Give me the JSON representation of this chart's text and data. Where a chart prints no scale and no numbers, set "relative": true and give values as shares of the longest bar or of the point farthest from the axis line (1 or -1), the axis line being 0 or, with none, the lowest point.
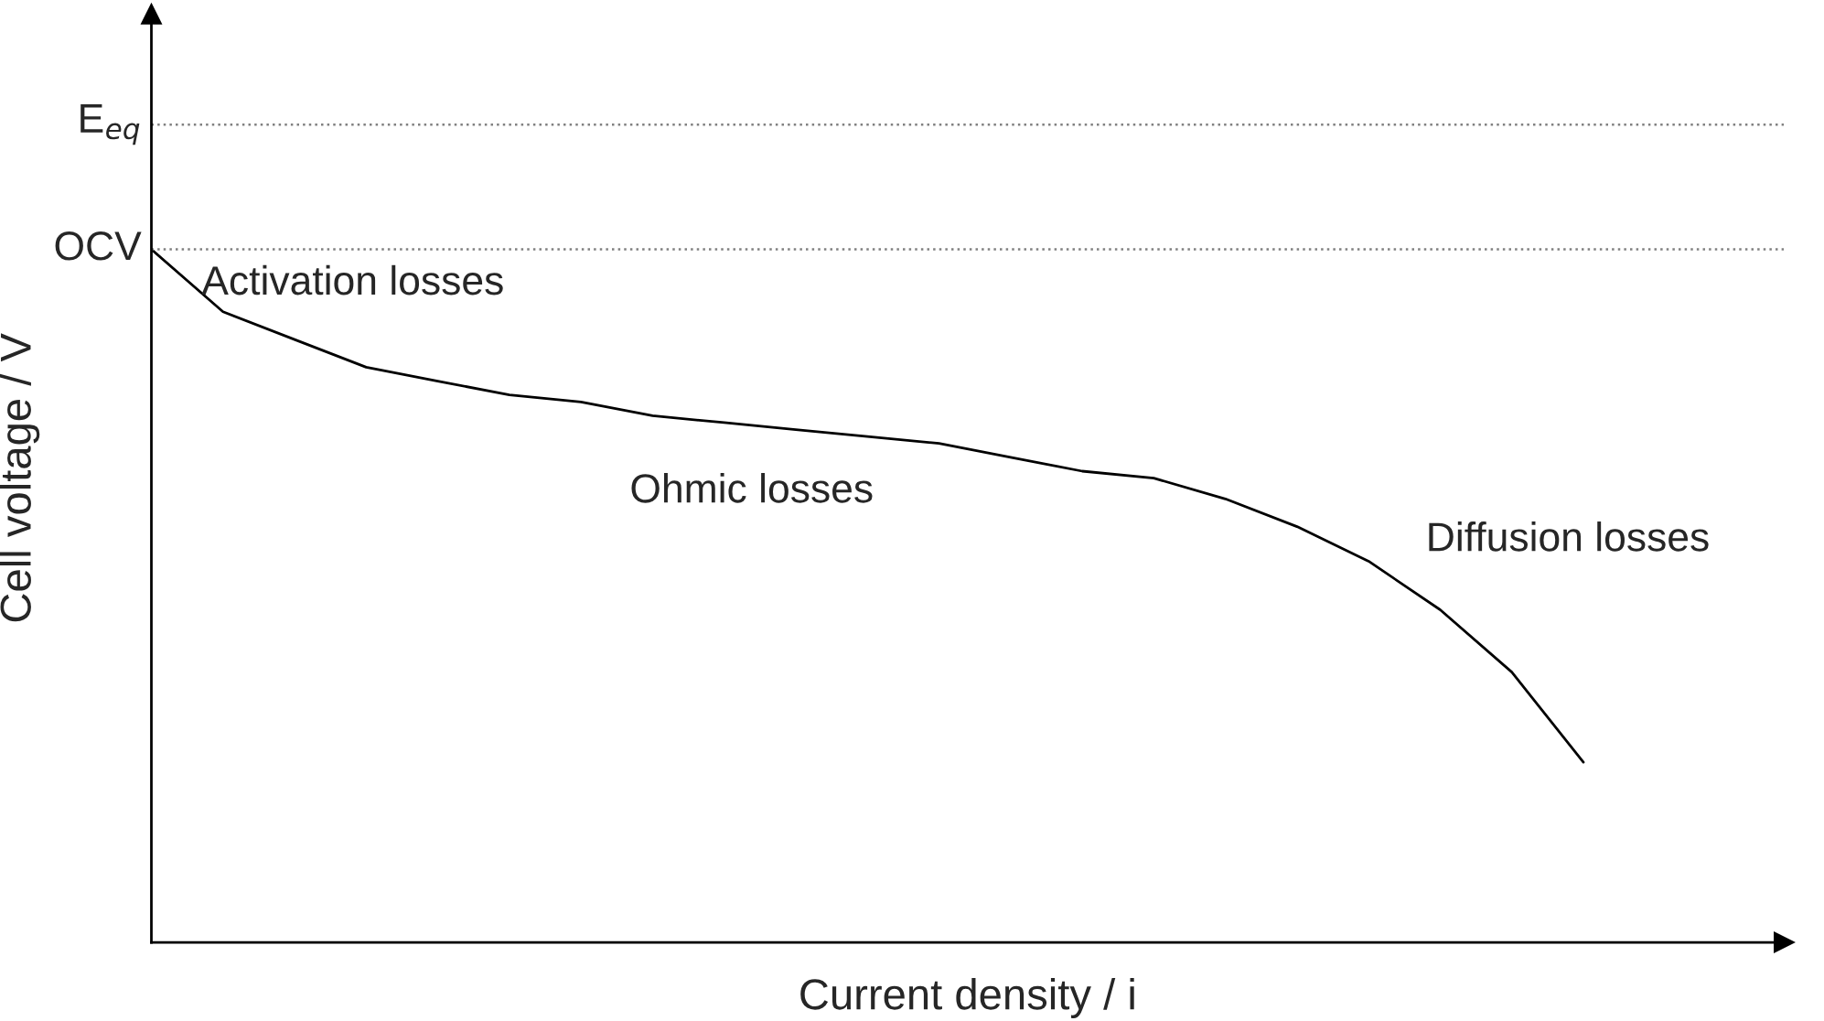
{
  "chart_data": {
    "type": "line",
    "relative": true,
    "xlabel": "Current density / i",
    "ylabel": "Cell voltage / V",
    "categories": [
      null,
      null,
      null,
      null,
      null,
      null,
      null,
      null,
      null,
      null,
      null,
      null,
      null,
      null,
      null,
      null,
      null,
      null,
      null,
      null,
      null
    ],
    "series": [
      {
        "color": "#000000",
        "values": [
          1.0,
          0.91,
          0.87,
          0.83,
          0.81,
          0.79,
          0.78,
          0.76,
          0.75,
          0.74,
          0.73,
          0.72,
          0.7,
          0.68,
          0.67,
          0.64,
          0.6,
          0.55,
          0.48,
          0.39,
          0.26
        ]
      }
    ],
    "ref_lines": [
      {
        "axis": "y",
        "value": 1.18,
        "label": "E$_{eq}$",
        "color": "#808080",
        "line_style": "dotted"
      },
      {
        "axis": "y",
        "value": 1.0,
        "label": "OCV",
        "color": "#808080",
        "line_style": "dotted"
      }
    ],
    "annotations": [
      "Activation losses",
      "Ohmic losses",
      "Diffusion losses"
    ],
    "tick_labels": false,
    "legend": false,
    "marker": "none",
    "line_style": "solid"
  }
}
